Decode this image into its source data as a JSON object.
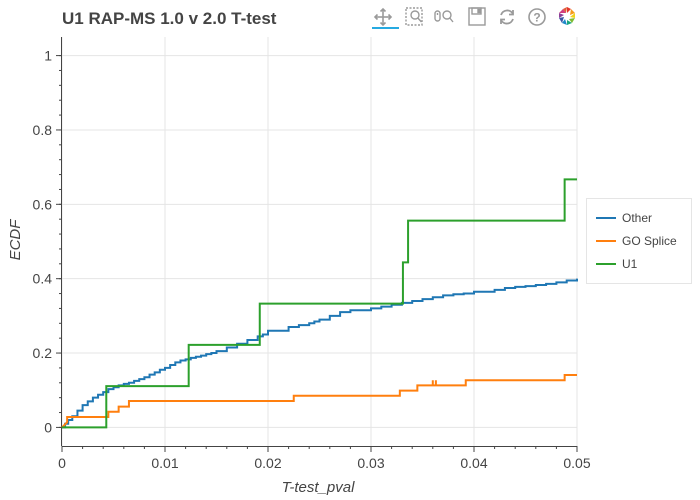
{
  "chart_title": "U1 RAP-MS 1.0 v 2.0 T-test",
  "toolbar": {
    "items": [
      {
        "name": "pan-icon",
        "active": true
      },
      {
        "name": "box-zoom-icon"
      },
      {
        "name": "wheel-zoom-icon"
      },
      {
        "name": "save-icon"
      },
      {
        "name": "reset-icon"
      },
      {
        "name": "help-icon"
      },
      {
        "name": "bokeh-logo-icon"
      }
    ]
  },
  "colors": {
    "Other": "#1f77b4",
    "GO Splice": "#ff7f0e",
    "U1": "#2ca02c",
    "grid": "#e5e5e5",
    "axis": "#444444"
  },
  "chart_data": {
    "type": "line",
    "title": "U1 RAP-MS 1.0 v 2.0 T-test",
    "xlabel": "T-test_pval",
    "ylabel": "ECDF",
    "xlim": [
      0,
      0.05
    ],
    "ylim": [
      -0.05,
      1.05
    ],
    "x_ticks": [
      "0",
      "0.01",
      "0.02",
      "0.03",
      "0.04",
      "0.05"
    ],
    "x_tick_values": [
      0,
      0.01,
      0.02,
      0.03,
      0.04,
      0.05
    ],
    "y_ticks": [
      "0",
      "0.2",
      "0.4",
      "0.6",
      "0.8",
      "1"
    ],
    "y_tick_values": [
      0,
      0.2,
      0.4,
      0.6,
      0.8,
      1.0
    ],
    "grid": true,
    "legend_position": "right",
    "series": [
      {
        "name": "Other",
        "step": true,
        "x": [
          0,
          0.0003,
          0.0006,
          0.001,
          0.0015,
          0.002,
          0.0025,
          0.003,
          0.0035,
          0.004,
          0.0045,
          0.005,
          0.0055,
          0.006,
          0.0065,
          0.007,
          0.0075,
          0.008,
          0.0085,
          0.009,
          0.0095,
          0.01,
          0.0105,
          0.011,
          0.0115,
          0.012,
          0.0125,
          0.013,
          0.0135,
          0.014,
          0.0145,
          0.015,
          0.016,
          0.017,
          0.018,
          0.019,
          0.0195,
          0.02,
          0.021,
          0.022,
          0.023,
          0.024,
          0.0245,
          0.025,
          0.026,
          0.027,
          0.028,
          0.029,
          0.03,
          0.031,
          0.032,
          0.033,
          0.034,
          0.035,
          0.036,
          0.037,
          0.038,
          0.039,
          0.04,
          0.041,
          0.042,
          0.043,
          0.044,
          0.045,
          0.046,
          0.047,
          0.048,
          0.049,
          0.05
        ],
        "y": [
          0,
          0.01,
          0.02,
          0.03,
          0.045,
          0.06,
          0.07,
          0.08,
          0.088,
          0.095,
          0.103,
          0.108,
          0.113,
          0.117,
          0.12,
          0.125,
          0.13,
          0.135,
          0.142,
          0.148,
          0.155,
          0.16,
          0.168,
          0.175,
          0.18,
          0.183,
          0.187,
          0.19,
          0.193,
          0.197,
          0.2,
          0.205,
          0.215,
          0.225,
          0.235,
          0.245,
          0.25,
          0.26,
          0.26,
          0.27,
          0.275,
          0.28,
          0.285,
          0.29,
          0.3,
          0.31,
          0.315,
          0.315,
          0.32,
          0.325,
          0.33,
          0.335,
          0.34,
          0.345,
          0.35,
          0.355,
          0.358,
          0.36,
          0.365,
          0.365,
          0.37,
          0.375,
          0.378,
          0.38,
          0.383,
          0.386,
          0.39,
          0.395,
          0.4
        ]
      },
      {
        "name": "GO Splice",
        "step": true,
        "x": [
          0,
          0.0005,
          0.0018,
          0.0045,
          0.0055,
          0.0065,
          0.0105,
          0.0225,
          0.0328,
          0.0345,
          0.036,
          0.0363,
          0.0392,
          0.0432,
          0.0488,
          0.05
        ],
        "y": [
          0,
          0.014,
          0.028,
          0.028,
          0.042,
          0.056,
          0.071,
          0.085,
          0.099,
          0.113,
          0.127,
          0.127,
          0.127,
          0.127,
          0.141,
          0.141
        ],
        "y_after": [
          0.014,
          0.028,
          0.028,
          0.042,
          0.056,
          0.071,
          0.071,
          0.085,
          0.099,
          0.113,
          0.113,
          0.113,
          0.127,
          0.127,
          0.141,
          0.141
        ]
      },
      {
        "name": "U1",
        "step": true,
        "x": [
          0,
          0.0043,
          0.0123,
          0.0192,
          0.0331,
          0.0336,
          0.0488,
          0.05
        ],
        "y": [
          0,
          0.111,
          0.222,
          0.333,
          0.444,
          0.556,
          0.667,
          0.667
        ]
      }
    ]
  }
}
